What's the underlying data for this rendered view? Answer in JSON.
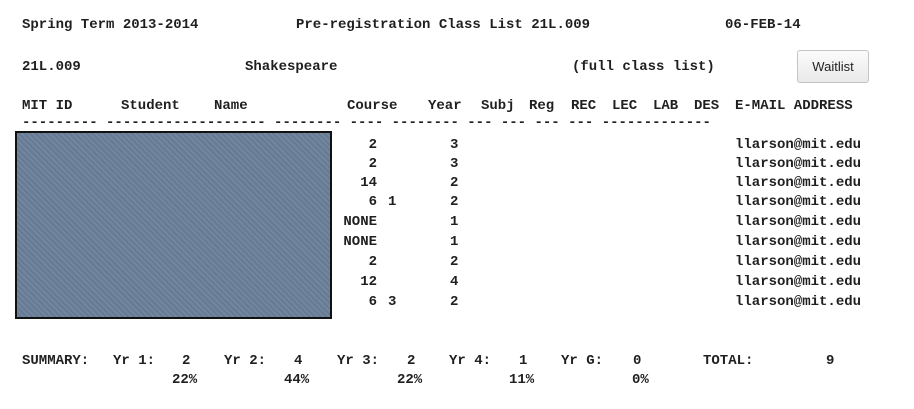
{
  "header": {
    "term": "Spring Term 2013-2014",
    "title": "Pre-registration Class List 21L.009",
    "date": "06-FEB-14"
  },
  "subheader": {
    "subject_number": "21L.009",
    "subject_title": "Shakespeare",
    "list_type": "(full class list)",
    "waitlist_button": "Waitlist"
  },
  "columns": [
    "MIT ID",
    "Student",
    "Name",
    "Course",
    "Year",
    "Subj",
    "Reg",
    "REC",
    "LEC",
    "LAB",
    "DES",
    "E-MAIL ADDRESS"
  ],
  "underline": "--------- ------------------- -------- ---- -------- --- --- --- --- -------------",
  "rows": [
    {
      "course": "2",
      "course_opt": "",
      "year": "3",
      "email": "llarson@mit.edu"
    },
    {
      "course": "2",
      "course_opt": "",
      "year": "3",
      "email": "llarson@mit.edu"
    },
    {
      "course": "14",
      "course_opt": "",
      "year": "2",
      "email": "llarson@mit.edu"
    },
    {
      "course": "6",
      "course_opt": "1",
      "year": "2",
      "email": "llarson@mit.edu"
    },
    {
      "course": "NONE",
      "course_opt": "",
      "year": "1",
      "email": "llarson@mit.edu"
    },
    {
      "course": "NONE",
      "course_opt": "",
      "year": "1",
      "email": "llarson@mit.edu"
    },
    {
      "course": "2",
      "course_opt": "",
      "year": "2",
      "email": "llarson@mit.edu"
    },
    {
      "course": "12",
      "course_opt": "",
      "year": "4",
      "email": "llarson@mit.edu"
    },
    {
      "course": "6",
      "course_opt": "3",
      "year": "2",
      "email": "llarson@mit.edu"
    }
  ],
  "summary": {
    "label": "SUMMARY:",
    "yr1_label": "Yr 1:",
    "yr1_count": "2",
    "yr1_pct": "22%",
    "yr2_label": "Yr 2:",
    "yr2_count": "4",
    "yr2_pct": "44%",
    "yr3_label": "Yr 3:",
    "yr3_count": "2",
    "yr3_pct": "22%",
    "yr4_label": "Yr 4:",
    "yr4_count": "1",
    "yr4_pct": "11%",
    "yrg_label": "Yr G:",
    "yrg_count": "0",
    "yrg_pct": "0%",
    "total_label": "TOTAL:",
    "total_count": "9"
  }
}
